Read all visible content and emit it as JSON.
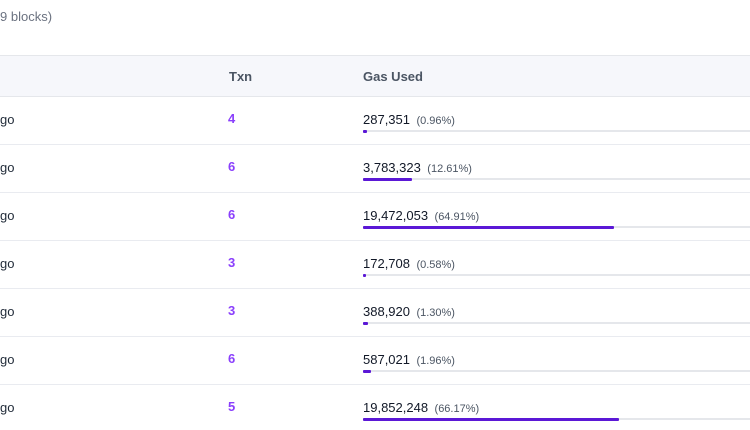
{
  "summary": "9 blocks)",
  "table": {
    "columns": {
      "txn": "Txn",
      "gas_used": "Gas Used"
    },
    "rows": [
      {
        "age": "go",
        "txn": "4",
        "gas_value": "287,351",
        "gas_pct": "(0.96%)",
        "gas_fraction": 0.0096
      },
      {
        "age": "go",
        "txn": "6",
        "gas_value": "3,783,323",
        "gas_pct": "(12.61%)",
        "gas_fraction": 0.1261
      },
      {
        "age": "go",
        "txn": "6",
        "gas_value": "19,472,053",
        "gas_pct": "(64.91%)",
        "gas_fraction": 0.6491
      },
      {
        "age": "go",
        "txn": "3",
        "gas_value": "172,708",
        "gas_pct": "(0.58%)",
        "gas_fraction": 0.0058
      },
      {
        "age": "go",
        "txn": "3",
        "gas_value": "388,920",
        "gas_pct": "(1.30%)",
        "gas_fraction": 0.013
      },
      {
        "age": "go",
        "txn": "6",
        "gas_value": "587,021",
        "gas_pct": "(1.96%)",
        "gas_fraction": 0.0196
      },
      {
        "age": "go",
        "txn": "5",
        "gas_value": "19,852,248",
        "gas_pct": "(66.17%)",
        "gas_fraction": 0.6617
      }
    ]
  },
  "colors": {
    "txn_link": "#8a3ffc",
    "gas_bar": "#5b18d6",
    "header_bg": "#f6f7fb"
  }
}
